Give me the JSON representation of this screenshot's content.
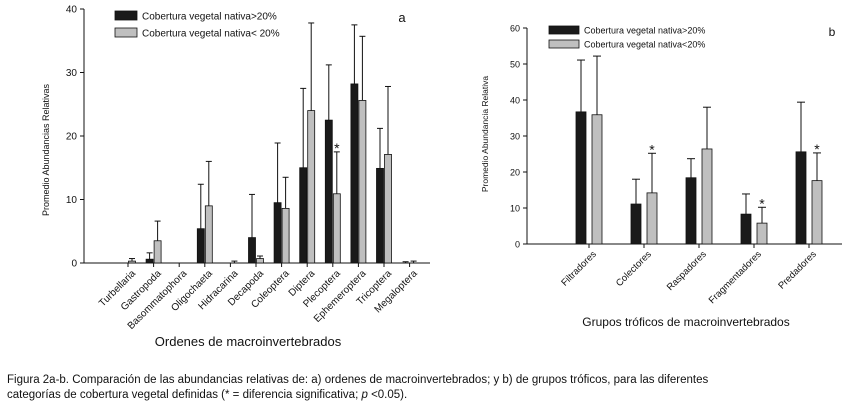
{
  "colors": {
    "dark": "#1a1a1a",
    "light": "#bfbfbf"
  },
  "chart_data": [
    {
      "type": "bar",
      "panel_label": "a",
      "title": "",
      "xlabel": "Ordenes de macroinvertebrados",
      "ylabel": "Promedio Abundancias Relativas",
      "ylim": [
        0,
        40
      ],
      "yticks": [
        "0",
        "10",
        "20",
        "30",
        "40"
      ],
      "legend_position": "top-left",
      "categories": [
        "Turbellaria",
        "Gastropoda",
        "Basommatophora",
        "Oligochaeta",
        "Hidracarina",
        "Decapoda",
        "Coleoptera",
        "Diptera",
        "Plecoptera",
        "Ephemeroptera",
        "Tricoptera",
        "Megaloptera"
      ],
      "series": [
        {
          "name": "Cobertura vegetal nativa>20%",
          "color": "dark",
          "values": [
            0,
            0.6,
            0,
            5.4,
            0,
            4.0,
            9.5,
            15.0,
            22.5,
            28.2,
            14.9,
            0
          ],
          "errors": [
            0,
            1.0,
            0,
            7.0,
            0,
            6.8,
            9.4,
            12.5,
            8.7,
            9.3,
            6.3,
            0.2
          ]
        },
        {
          "name": "Cobertura vegetal nativa< 20%",
          "color": "light",
          "values": [
            0.3,
            3.5,
            0,
            9.0,
            0,
            0.7,
            8.6,
            24.0,
            10.9,
            25.6,
            17.1,
            0
          ],
          "errors": [
            0.4,
            3.1,
            0,
            7.0,
            0.3,
            0.4,
            4.9,
            13.8,
            6.6,
            10.1,
            10.7,
            0.3
          ]
        }
      ],
      "annotations": [
        {
          "text": "*",
          "category": "Plecoptera",
          "series": 1
        }
      ]
    },
    {
      "type": "bar",
      "panel_label": "b",
      "title": "",
      "xlabel": "Grupos tróficos de macroinvertebrados",
      "ylabel": "Promedio Abundancia Relativa",
      "ylim": [
        0,
        60
      ],
      "yticks": [
        "0",
        "10",
        "20",
        "30",
        "40",
        "50",
        "60"
      ],
      "legend_position": "top-left",
      "categories": [
        "Filtradores",
        "Colectores",
        "Raspadores",
        "Fragmentadores",
        "Predadores"
      ],
      "series": [
        {
          "name": "Cobertura vegetal nativa>20%",
          "color": "dark",
          "values": [
            36.7,
            11.1,
            18.4,
            8.3,
            25.6
          ],
          "errors": [
            14.4,
            6.9,
            5.3,
            5.6,
            13.8
          ]
        },
        {
          "name": "Cobertura vegetal nativa<20%",
          "color": "light",
          "values": [
            35.9,
            14.2,
            26.4,
            5.8,
            17.6
          ],
          "errors": [
            16.3,
            11.0,
            11.6,
            4.4,
            7.7
          ]
        }
      ],
      "annotations": [
        {
          "text": "*",
          "category": "Colectores",
          "series": 1
        },
        {
          "text": "*",
          "category": "Fragmentadores",
          "series": 1
        },
        {
          "text": "*",
          "category": "Predadores",
          "series": 1
        }
      ]
    }
  ],
  "caption": {
    "line1": "Figura 2a-b. Comparación de las abundancias relativas de: a) ordenes de macroinvertebrados; y b) de grupos tróficos, para las diferentes",
    "line2_start": "categorías de cobertura vegetal definidas (* = diferencia significativa; ",
    "line2_p": "p",
    "line2_end": " <0.05)."
  }
}
